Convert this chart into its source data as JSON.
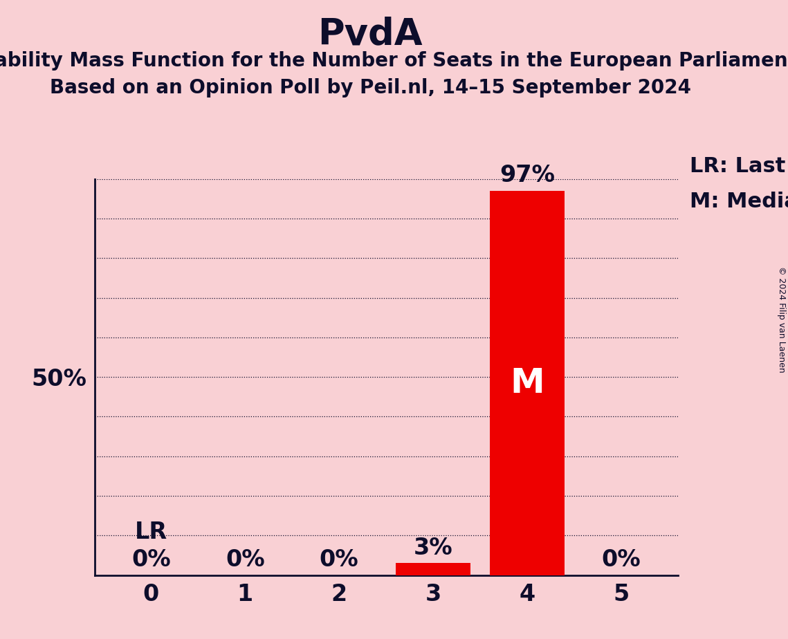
{
  "title": "PvdA",
  "subtitle1": "Probability Mass Function for the Number of Seats in the European Parliament",
  "subtitle2": "Based on an Opinion Poll by Peil.nl, 14–15 September 2024",
  "copyright": "© 2024 Filip van Laenen",
  "categories": [
    0,
    1,
    2,
    3,
    4,
    5
  ],
  "values": [
    0,
    0,
    0,
    3,
    97,
    0
  ],
  "bar_color": "#EE0000",
  "background_color": "#F9D0D4",
  "median_seat": 4,
  "last_result_seat": 0,
  "legend_lr": "LR: Last Result",
  "legend_m": "M: Median",
  "ylabel_50": "50%",
  "title_fontsize": 38,
  "subtitle_fontsize": 20,
  "axis_label_fontsize": 24,
  "bar_label_fontsize": 24,
  "legend_fontsize": 22,
  "ylim": [
    0,
    100
  ],
  "yticks": [
    10,
    20,
    30,
    40,
    50,
    60,
    70,
    80,
    90,
    100
  ]
}
